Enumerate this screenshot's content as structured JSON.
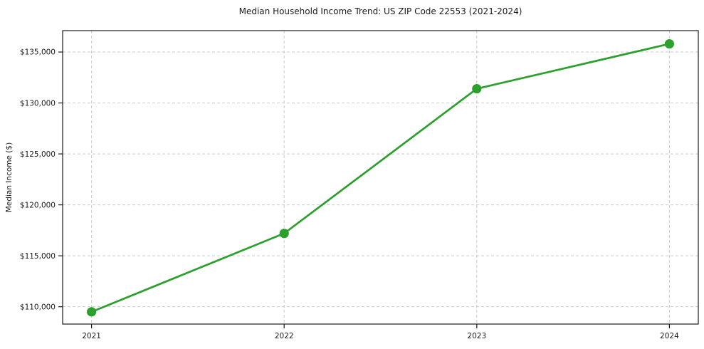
{
  "chart_data": {
    "type": "line",
    "title": "Median Household Income Trend: US ZIP Code 22553 (2021-2024)",
    "xlabel": "",
    "ylabel": "Median Income ($)",
    "x": [
      2021,
      2022,
      2023,
      2024
    ],
    "values": [
      109500,
      117200,
      131400,
      135800
    ],
    "xticks": [
      2021,
      2022,
      2023,
      2024
    ],
    "xtick_labels": [
      "2021",
      "2022",
      "2023",
      "2024"
    ],
    "yticks": [
      110000,
      115000,
      120000,
      125000,
      130000,
      135000
    ],
    "ytick_labels": [
      "$110,000",
      "$115,000",
      "$120,000",
      "$125,000",
      "$130,000",
      "$135,000"
    ],
    "xlim": [
      2020.85,
      2024.15
    ],
    "ylim": [
      108300,
      137100
    ],
    "grid": true,
    "grid_style": "dashed",
    "grid_color": "#c9c9c9",
    "line_color": "#2ca02c",
    "marker": "circle",
    "legend_position": "none"
  }
}
